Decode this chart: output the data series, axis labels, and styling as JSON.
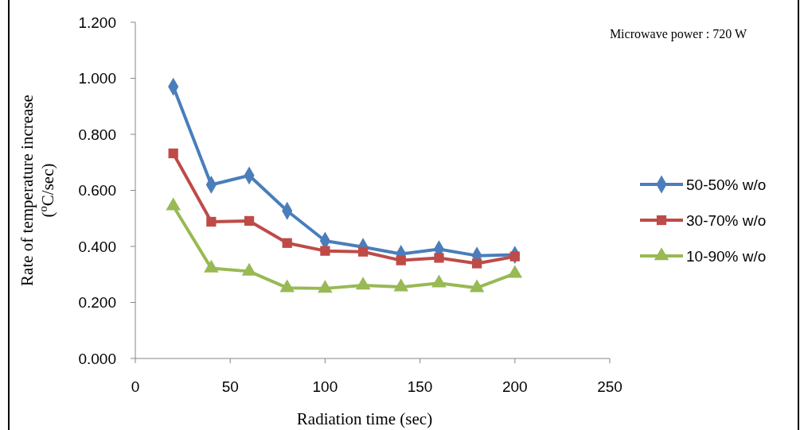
{
  "chart_data": {
    "type": "line",
    "xlabel": "Radiation time (sec)",
    "ylabel": "Rate of temperature increase\n($^{o}$C/sec)",
    "annotations": [
      "Microwave power : 720 W"
    ],
    "x": [
      20,
      40,
      60,
      80,
      100,
      120,
      140,
      160,
      180,
      200
    ],
    "series": [
      {
        "name": "50-50% w/o",
        "color": "#4a7ebb",
        "marker": "diamond",
        "values": [
          0.97,
          0.62,
          0.653,
          0.527,
          0.42,
          0.398,
          0.373,
          0.39,
          0.367,
          0.37
        ]
      },
      {
        "name": "30-70% w/o",
        "color": "#be4b48",
        "marker": "square",
        "values": [
          0.732,
          0.488,
          0.491,
          0.412,
          0.384,
          0.381,
          0.35,
          0.359,
          0.339,
          0.364
        ]
      },
      {
        "name": "10-90% w/o",
        "color": "#98b954",
        "marker": "triangle",
        "values": [
          0.544,
          0.322,
          0.311,
          0.252,
          0.25,
          0.261,
          0.255,
          0.269,
          0.252,
          0.303
        ]
      }
    ],
    "xlim": [
      0,
      250
    ],
    "xticks": [
      0,
      50,
      100,
      150,
      200,
      250
    ],
    "ylim": [
      0,
      1.2
    ],
    "yticks": [
      {
        "value": 0,
        "label": "0.000"
      },
      {
        "value": 0.2,
        "label": "0.200"
      },
      {
        "value": 0.4,
        "label": "0.400"
      },
      {
        "value": 0.6,
        "label": "0.600"
      },
      {
        "value": 0.8,
        "label": "0.800"
      },
      {
        "value": 1,
        "label": "1.000"
      },
      {
        "value": 1.2,
        "label": "1.200"
      }
    ],
    "grid": false,
    "legend": "right",
    "line_style": "solid"
  }
}
